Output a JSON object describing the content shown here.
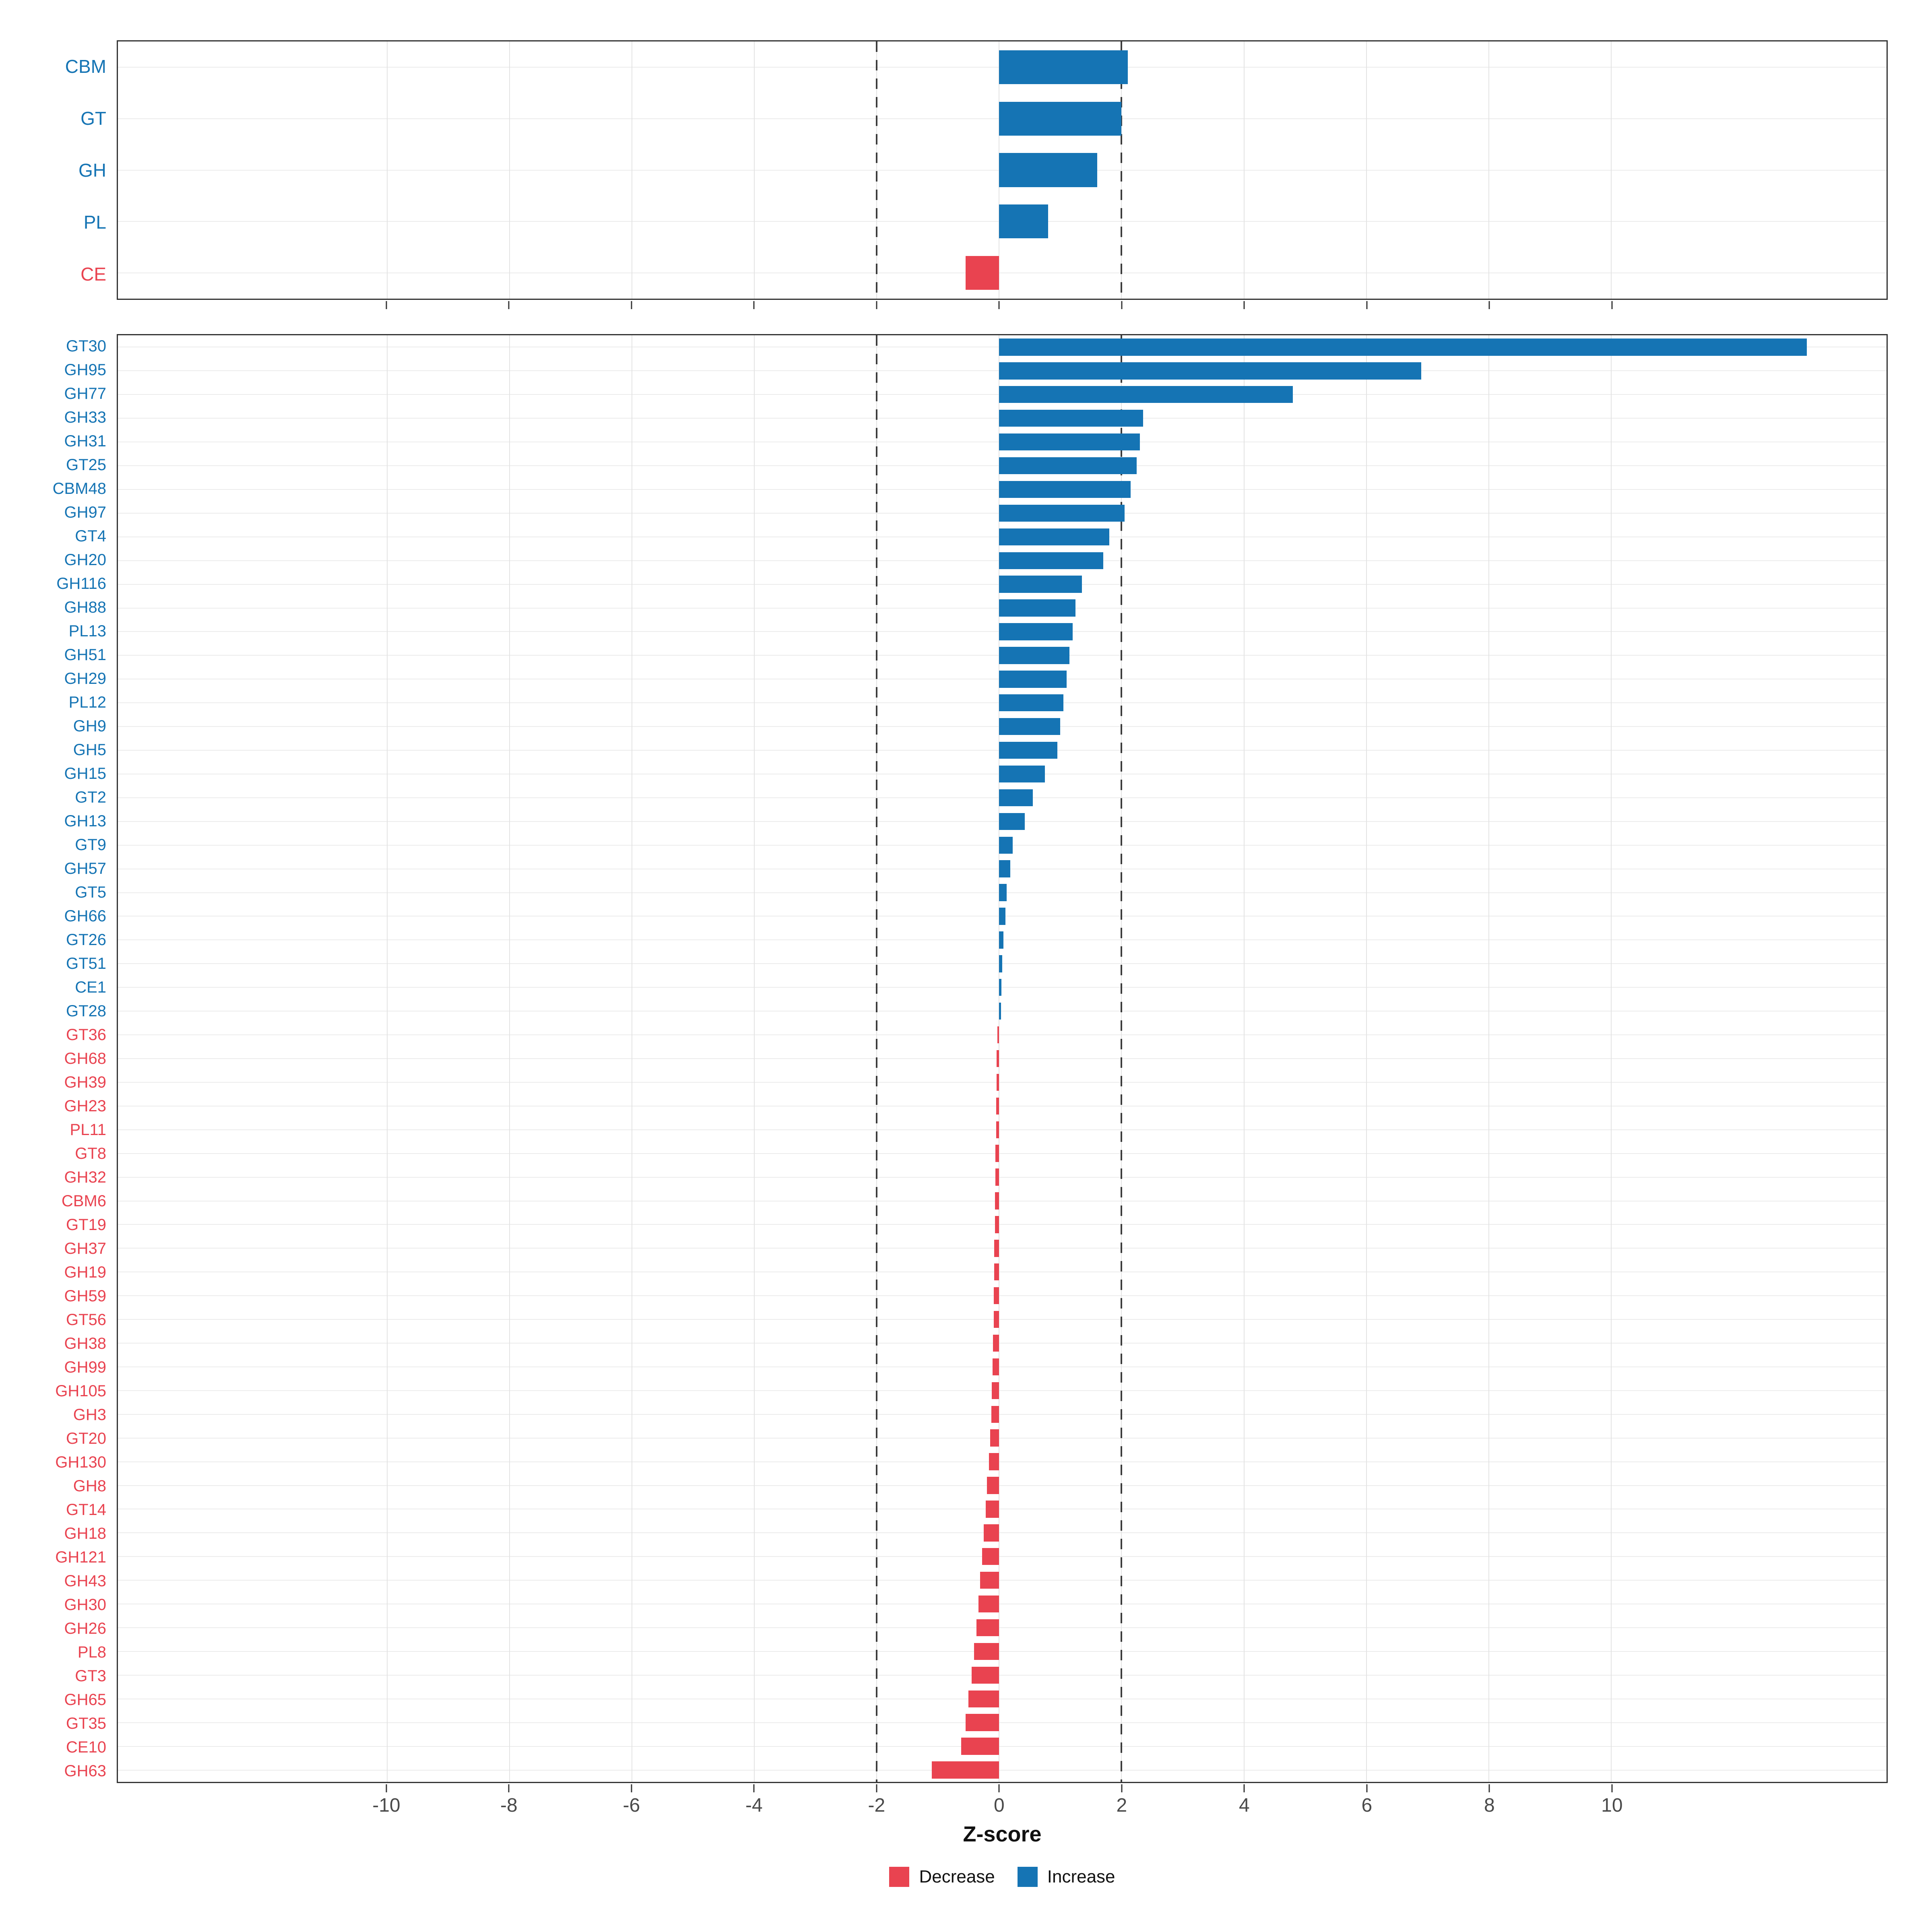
{
  "figure": {
    "x_axis_title": "Z-score",
    "x_ticks": [
      -10,
      -8,
      -6,
      -4,
      -2,
      0,
      2,
      4,
      6,
      8,
      10
    ],
    "xlim": [
      -14.4,
      14.5
    ],
    "reference_lines": [
      -2,
      2
    ]
  },
  "colors": {
    "increase": "#1574B4",
    "decrease": "#E94350",
    "gridline": "#ececec",
    "panel_border": "#333333",
    "tick_label": "#4a4a4a"
  },
  "legend": {
    "items": [
      {
        "label": "Decrease",
        "color": "#E94350"
      },
      {
        "label": "Increase",
        "color": "#1574B4"
      }
    ]
  },
  "chart_data": [
    {
      "type": "bar",
      "orientation": "horizontal",
      "panel": "families",
      "title": "",
      "xlabel": "Z-score",
      "ylabel": "",
      "xlim": [
        -14.4,
        14.5
      ],
      "reference_lines": [
        -2,
        2
      ],
      "legend_position": "bottom",
      "grid": true,
      "categories": [
        "CBM",
        "GT",
        "GH",
        "PL",
        "CE"
      ],
      "values": [
        2.1,
        2.0,
        1.6,
        0.8,
        -0.55
      ]
    },
    {
      "type": "bar",
      "orientation": "horizontal",
      "panel": "subfamilies",
      "title": "",
      "xlabel": "Z-score",
      "ylabel": "",
      "xlim": [
        -14.4,
        14.5
      ],
      "reference_lines": [
        -2,
        2
      ],
      "legend_position": "bottom",
      "grid": true,
      "categories": [
        "GT30",
        "GH95",
        "GH77",
        "GH33",
        "GH31",
        "GT25",
        "CBM48",
        "GH97",
        "GT4",
        "GH20",
        "GH116",
        "GH88",
        "PL13",
        "GH51",
        "GH29",
        "PL12",
        "GH9",
        "GH5",
        "GH15",
        "GT2",
        "GH13",
        "GT9",
        "GH57",
        "GT5",
        "GH66",
        "GT26",
        "GT51",
        "CE1",
        "GT28",
        "GT36",
        "GH68",
        "GH39",
        "GH23",
        "PL11",
        "GT8",
        "GH32",
        "CBM6",
        "GT19",
        "GH37",
        "GH19",
        "GH59",
        "GT56",
        "GH38",
        "GH99",
        "GH105",
        "GH3",
        "GT20",
        "GH130",
        "GH8",
        "GT14",
        "GH18",
        "GH121",
        "GH43",
        "GH30",
        "GH26",
        "PL8",
        "GT3",
        "GH65",
        "GT35",
        "CE10",
        "GH63"
      ],
      "values": [
        13.2,
        6.9,
        4.8,
        2.35,
        2.3,
        2.25,
        2.15,
        2.05,
        1.8,
        1.7,
        1.35,
        1.25,
        1.2,
        1.15,
        1.1,
        1.05,
        1.0,
        0.95,
        0.75,
        0.55,
        0.42,
        0.22,
        0.18,
        0.12,
        0.1,
        0.07,
        0.05,
        0.04,
        0.03,
        -0.03,
        -0.04,
        -0.04,
        -0.05,
        -0.05,
        -0.06,
        -0.06,
        -0.07,
        -0.07,
        -0.08,
        -0.08,
        -0.09,
        -0.09,
        -0.1,
        -0.11,
        -0.12,
        -0.13,
        -0.15,
        -0.17,
        -0.2,
        -0.22,
        -0.25,
        -0.28,
        -0.31,
        -0.34,
        -0.37,
        -0.41,
        -0.45,
        -0.5,
        -0.55,
        -0.62,
        -1.1
      ]
    }
  ]
}
